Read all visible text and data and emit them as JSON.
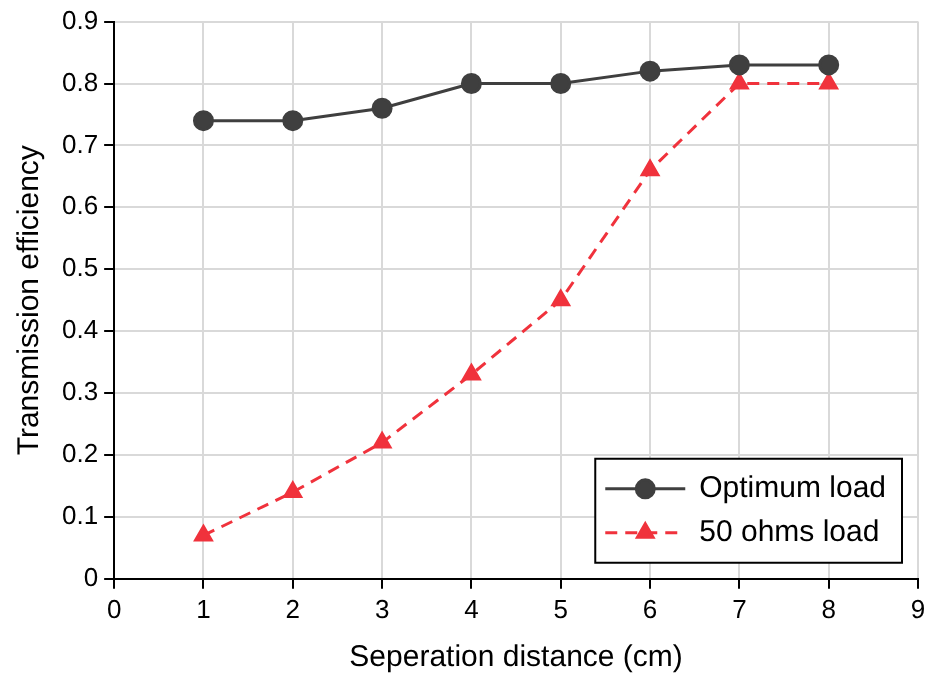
{
  "chart_data": {
    "type": "line",
    "xlabel": "Seperation distance (cm)",
    "ylabel": "Transmission efficiency",
    "x": [
      1,
      2,
      3,
      4,
      5,
      6,
      7,
      8
    ],
    "series": [
      {
        "name": "Optimum load",
        "color": "#3f3f3f",
        "marker": "circle",
        "line_style": "solid",
        "values": [
          0.74,
          0.74,
          0.76,
          0.8,
          0.8,
          0.82,
          0.83,
          0.83
        ]
      },
      {
        "name": "50 ohms load",
        "color": "#f0323c",
        "marker": "triangle",
        "line_style": "dashed",
        "values": [
          0.07,
          0.14,
          0.22,
          0.33,
          0.45,
          0.66,
          0.8,
          0.8
        ]
      }
    ],
    "xlim": [
      0,
      9
    ],
    "xticks": [
      0,
      1,
      2,
      3,
      4,
      5,
      6,
      7,
      8,
      9
    ],
    "ylim": [
      0,
      0.9
    ],
    "yticks": [
      0,
      0.1,
      0.2,
      0.3,
      0.4,
      0.5,
      0.6,
      0.7,
      0.8,
      0.9
    ],
    "grid": true,
    "legend": "bottom right"
  }
}
